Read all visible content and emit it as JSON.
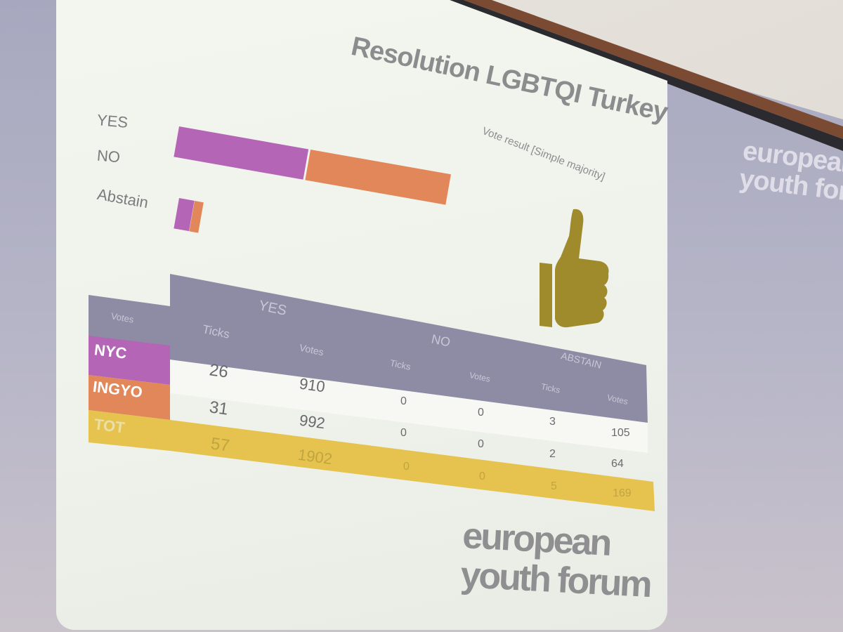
{
  "slide": {
    "title": "Resolution LGBTQI Turkey",
    "subtitle": "Vote result [Simple majority]",
    "bar_labels": [
      "YES",
      "NO",
      "Abstain"
    ],
    "colors": {
      "nyc": "#b565b5",
      "ingyo": "#e2875a",
      "tot": "#e6c24f",
      "header": "#8e8ca5",
      "thumb": "#9f8a2c"
    },
    "thumb_icon": "thumbs-up-icon",
    "logo_line1": "european",
    "logo_line2": "youth forum"
  },
  "background_logo": {
    "line1": "european",
    "line2": "youth forum"
  },
  "table": {
    "corner": "Votes",
    "groups": [
      "YES",
      "NO",
      "ABSTAIN"
    ],
    "subheaders": [
      "Ticks",
      "Votes",
      "Ticks",
      "Votes",
      "Ticks",
      "Votes"
    ],
    "rows": [
      {
        "label": "NYC",
        "values": [
          "26",
          "910",
          "0",
          "0",
          "3",
          "105"
        ]
      },
      {
        "label": "INGYO",
        "values": [
          "31",
          "992",
          "0",
          "0",
          "2",
          "64"
        ]
      },
      {
        "label": "TOT",
        "values": [
          "57",
          "1902",
          "0",
          "0",
          "5",
          "169"
        ]
      }
    ]
  },
  "chart_data": {
    "type": "bar",
    "categories": [
      "YES",
      "NO",
      "Abstain"
    ],
    "series": [
      {
        "name": "NYC",
        "values": [
          910,
          0,
          105
        ]
      },
      {
        "name": "INGYO",
        "values": [
          992,
          0,
          64
        ]
      }
    ]
  }
}
